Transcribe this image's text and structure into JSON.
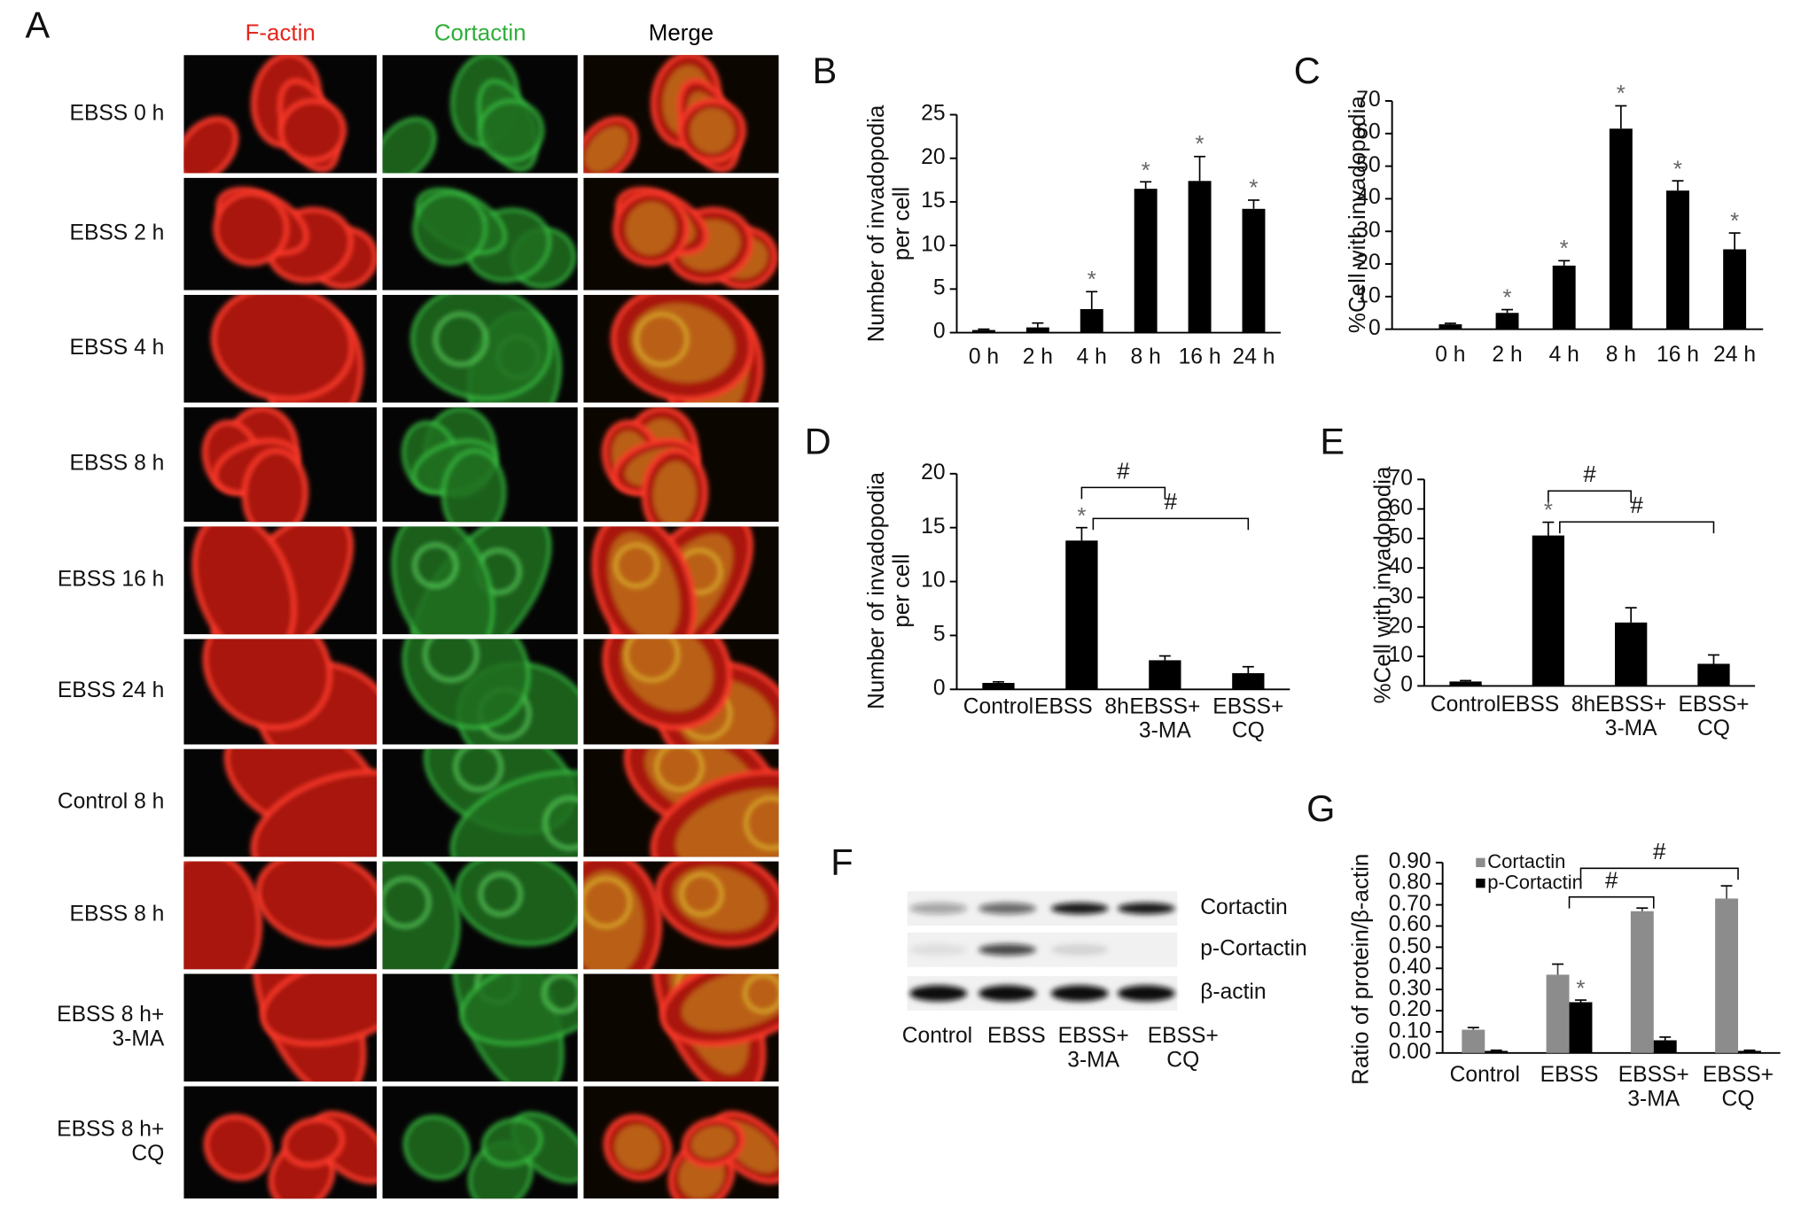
{
  "panel_a": {
    "label": "A",
    "columns": [
      "F-actin",
      "Cortactin",
      "Merge"
    ],
    "rows": [
      "EBSS 0 h",
      "EBSS 2 h",
      "EBSS 4 h",
      "EBSS 8 h",
      "EBSS 16 h",
      "EBSS 24 h",
      "Control 8 h",
      "EBSS 8 h",
      "EBSS 8 h+\n3-MA",
      "EBSS 8 h+\nCQ"
    ]
  },
  "panel_f": {
    "label": "F",
    "proteins": [
      "Cortactin",
      "p-Cortactin",
      "β-actin"
    ],
    "lanes": [
      "Control",
      "EBSS",
      "EBSS+\n3-MA",
      "EBSS+\nCQ"
    ]
  },
  "chart_data": [
    {
      "type": "bar",
      "panel": "B",
      "ylabel": "Number of invadopodia\nper cell",
      "categories": [
        "0 h",
        "2 h",
        "4 h",
        "8 h",
        "16 h",
        "24 h"
      ],
      "values": [
        0.3,
        0.6,
        2.7,
        16.5,
        17.4,
        14.2
      ],
      "errors": [
        0.1,
        0.5,
        2.0,
        0.8,
        2.8,
        1.0
      ],
      "value_marks": [
        null,
        null,
        "*",
        "*",
        "*",
        "*"
      ],
      "color": "#000000",
      "ylim": [
        0,
        25
      ],
      "yticks": [
        0,
        5,
        10,
        15,
        20,
        25
      ]
    },
    {
      "type": "bar",
      "panel": "C",
      "ylabel": "%Cell with invadopodia",
      "categories": [
        "0 h",
        "2 h",
        "4 h",
        "8 h",
        "16 h",
        "24 h"
      ],
      "values": [
        1.5,
        5,
        19.5,
        61.5,
        42.5,
        24.5
      ],
      "errors": [
        0.3,
        1,
        1.5,
        7,
        3,
        5
      ],
      "value_marks": [
        null,
        "*",
        "*",
        "*",
        "*",
        "*"
      ],
      "color": "#000000",
      "ylim": [
        0,
        70
      ],
      "yticks": [
        0,
        10,
        20,
        30,
        40,
        50,
        60,
        70
      ]
    },
    {
      "type": "bar",
      "panel": "D",
      "ylabel": "Number of invadopodia\nper cell",
      "categories": [
        "Control",
        "EBSS  8h",
        "EBSS+\n3-MA",
        "EBSS+\nCQ"
      ],
      "values": [
        0.6,
        13.8,
        2.7,
        1.5
      ],
      "errors": [
        0.1,
        1.2,
        0.4,
        0.6
      ],
      "value_marks": [
        null,
        "*",
        null,
        null
      ],
      "brackets": [
        {
          "from": 1,
          "to": 2,
          "label": "#"
        },
        {
          "from": 1,
          "to": 3,
          "label": "#"
        }
      ],
      "color": "#000000",
      "ylim": [
        0,
        20
      ],
      "yticks": [
        0,
        5,
        10,
        15,
        20
      ]
    },
    {
      "type": "bar",
      "panel": "E",
      "ylabel": "%Cell with invadopodia",
      "categories": [
        "Control",
        "EBSS  8h",
        "EBSS+\n3-MA",
        "EBSS+\nCQ"
      ],
      "values": [
        1.5,
        51,
        21.5,
        7.5
      ],
      "errors": [
        0.3,
        4.5,
        5,
        3
      ],
      "value_marks": [
        null,
        "*",
        null,
        null
      ],
      "brackets": [
        {
          "from": 1,
          "to": 2,
          "label": "#"
        },
        {
          "from": 1,
          "to": 3,
          "label": "#"
        }
      ],
      "color": "#000000",
      "ylim": [
        0,
        70
      ],
      "yticks": [
        0,
        10,
        20,
        30,
        40,
        50,
        60,
        70
      ]
    },
    {
      "type": "bar",
      "panel": "G",
      "ylabel": "Ratio of protein/β-actin",
      "categories": [
        "Control",
        "EBSS",
        "EBSS+\n3-MA",
        "EBSS+\nCQ"
      ],
      "series": [
        {
          "name": "Cortactin",
          "color": "#8c8c8c",
          "values": [
            0.11,
            0.37,
            0.67,
            0.73
          ],
          "errors": [
            0.01,
            0.05,
            0.015,
            0.06
          ],
          "value_marks": [
            null,
            null,
            null,
            null
          ]
        },
        {
          "name": "p-Cortactin",
          "color": "#000000",
          "values": [
            0.01,
            0.24,
            0.06,
            0.01
          ],
          "errors": [
            0.003,
            0.01,
            0.015,
            0.003
          ],
          "value_marks": [
            null,
            "*",
            null,
            null
          ]
        }
      ],
      "brackets": [
        {
          "from": 1,
          "to": 2,
          "label": "#"
        },
        {
          "from": 1,
          "to": 3,
          "label": "#"
        }
      ],
      "legend": "upper left",
      "ylim": [
        0,
        0.9
      ],
      "yticks": [
        {
          "value": 0,
          "label": "0.00"
        },
        {
          "value": 0.1,
          "label": "0.10"
        },
        {
          "value": 0.2,
          "label": "0.20"
        },
        {
          "value": 0.3,
          "label": "0.30"
        },
        {
          "value": 0.4,
          "label": "0.40"
        },
        {
          "value": 0.5,
          "label": "0.50"
        },
        {
          "value": 0.6,
          "label": "0.60"
        },
        {
          "value": 0.7,
          "label": "0.70"
        },
        {
          "value": 0.8,
          "label": "0.80"
        },
        {
          "value": 0.9,
          "label": "0.90"
        }
      ]
    }
  ]
}
